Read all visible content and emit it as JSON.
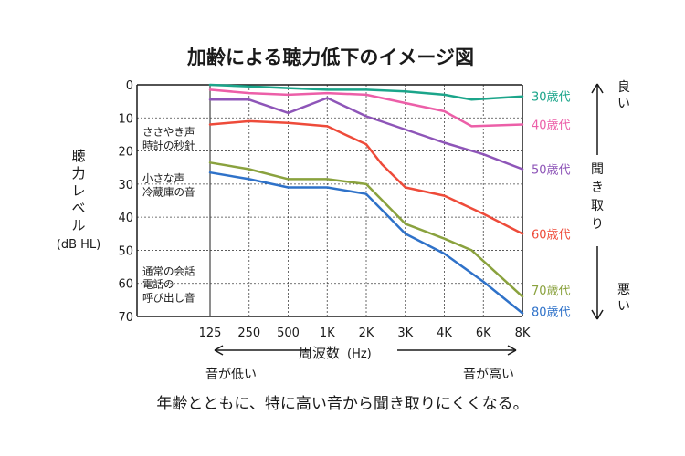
{
  "title": "加齢による聴力低下のイメージ図",
  "caption": "年齢とともに、特に高い音から聞き取りにくくなる。",
  "chart_data": {
    "type": "line",
    "xlabel": "周波数",
    "xunit": "(Hz)",
    "ylabel_lines": [
      "聴",
      "力",
      "レ",
      "ベ",
      "ル"
    ],
    "yunit": "(dB HL)",
    "x": [
      "125",
      "250",
      "500",
      "1K",
      "2K",
      "3K",
      "4K",
      "6K",
      "8K"
    ],
    "y_ticks": [
      "0",
      "10",
      "20",
      "30",
      "40",
      "50",
      "60",
      "70"
    ],
    "ylim": [
      0,
      70
    ],
    "y_inverted": true,
    "grid": "dashed-horizontal",
    "series": [
      {
        "name": "30歳代",
        "color": "#1ba58a",
        "points": [
          [
            0,
            0
          ],
          [
            1,
            0.5
          ],
          [
            2,
            1
          ],
          [
            3,
            1.5
          ],
          [
            4,
            1.5
          ],
          [
            5,
            2
          ],
          [
            6,
            3
          ],
          [
            6.7,
            4.5
          ],
          [
            8,
            3.5
          ]
        ]
      },
      {
        "name": "40歳代",
        "color": "#ec5fa8",
        "points": [
          [
            0,
            1.5
          ],
          [
            1,
            2.5
          ],
          [
            2,
            3
          ],
          [
            3,
            2.5
          ],
          [
            4,
            3
          ],
          [
            5,
            5.5
          ],
          [
            6,
            8
          ],
          [
            6.7,
            12.5
          ],
          [
            8,
            12
          ]
        ]
      },
      {
        "name": "50歳代",
        "color": "#8e55b8",
        "points": [
          [
            0,
            4.5
          ],
          [
            1,
            4.5
          ],
          [
            2,
            8.5
          ],
          [
            3,
            4
          ],
          [
            4,
            9.5
          ],
          [
            5,
            13.5
          ],
          [
            6,
            17.5
          ],
          [
            7,
            21
          ],
          [
            8,
            25.5
          ]
        ]
      },
      {
        "name": "60歳代",
        "color": "#ee4b3a",
        "points": [
          [
            0,
            12
          ],
          [
            1,
            11
          ],
          [
            2,
            11.5
          ],
          [
            3,
            12.5
          ],
          [
            4,
            18
          ],
          [
            4.4,
            24
          ],
          [
            5,
            31
          ],
          [
            6,
            33.5
          ],
          [
            7,
            39
          ],
          [
            8,
            45
          ]
        ]
      },
      {
        "name": "70歳代",
        "color": "#8aa23e",
        "points": [
          [
            0,
            23.5
          ],
          [
            1,
            25.5
          ],
          [
            2,
            28.5
          ],
          [
            3,
            28.5
          ],
          [
            4,
            30
          ],
          [
            5,
            42
          ],
          [
            6,
            46.5
          ],
          [
            6.7,
            50
          ],
          [
            8,
            64
          ]
        ]
      },
      {
        "name": "80歳代",
        "color": "#2f72c9",
        "points": [
          [
            0,
            26.5
          ],
          [
            1,
            28.5
          ],
          [
            2,
            31
          ],
          [
            3,
            31
          ],
          [
            4,
            33
          ],
          [
            5,
            45
          ],
          [
            6,
            51
          ],
          [
            7,
            59.5
          ],
          [
            8,
            69
          ]
        ]
      }
    ]
  },
  "annotations": [
    {
      "lines": [
        "ささやき声",
        "時計の秒針"
      ],
      "db": 20
    },
    {
      "lines": [
        "小さな声",
        "冷蔵庫の音"
      ],
      "db": 34
    },
    {
      "lines": [
        "通常の会話"
      ],
      "db": 58
    },
    {
      "lines": [
        "電話の",
        "呼び出し音"
      ],
      "db": 66
    }
  ],
  "right_axis": {
    "top": "良い",
    "middle": "聞き取り",
    "bottom": "悪い"
  },
  "bottom_axis": {
    "left": "音が低い",
    "right": "音が高い"
  }
}
